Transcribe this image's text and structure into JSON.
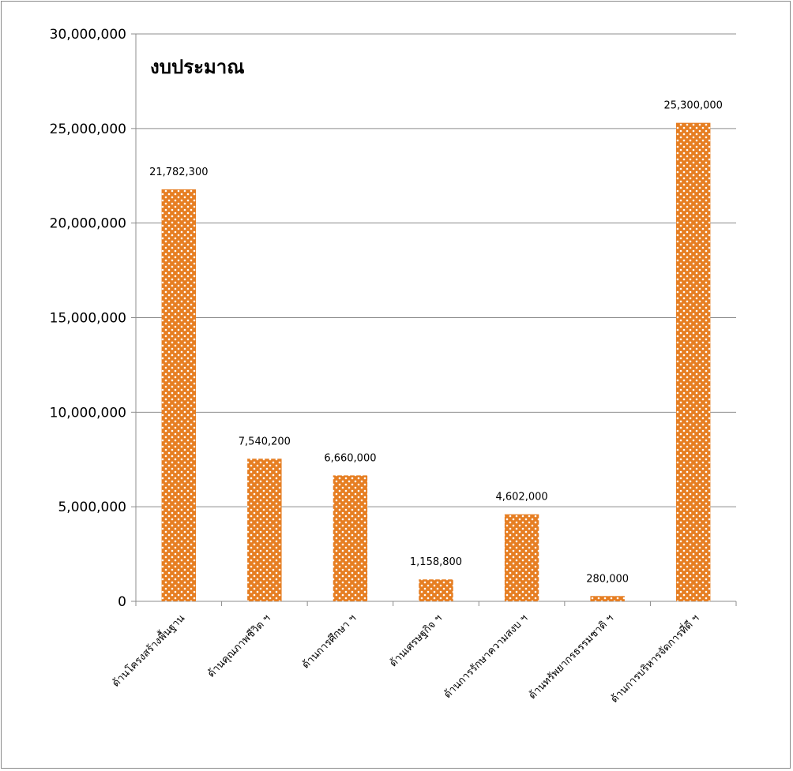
{
  "chart_data": {
    "type": "bar",
    "title": "งบประมาณ",
    "categories": [
      "ด้านโครงสร้างพื้นฐาน",
      "ด้านคุณภาพชีวิต ฯ",
      "ด้านการศึกษา ฯ",
      "ด้านเศรษฐกิจ ฯ",
      "ด้านการรักษาความสงบ ฯ",
      "ด้านทรัพยากรธรรมชาติ ฯ",
      "ด้านการบริหารจัดการที่ดี ฯ"
    ],
    "values": [
      21782300,
      7540200,
      6660000,
      1158800,
      4602000,
      280000,
      25300000
    ],
    "data_labels": [
      "21,782,300",
      "7,540,200",
      "6,660,000",
      "1,158,800",
      "4,602,000",
      "280,000",
      "25,300,000"
    ],
    "y_ticks": [
      0,
      5000000,
      10000000,
      15000000,
      20000000,
      25000000,
      30000000
    ],
    "y_tick_labels": [
      "0",
      "5,000,000",
      "10,000,000",
      "15,000,000",
      "20,000,000",
      "25,000,000",
      "30,000,000"
    ],
    "ylim": [
      0,
      30000000
    ],
    "xlabel": "",
    "ylabel": "",
    "grid": true,
    "bar_color": "#e67e22",
    "bar_pattern_color": "#ffffff"
  }
}
